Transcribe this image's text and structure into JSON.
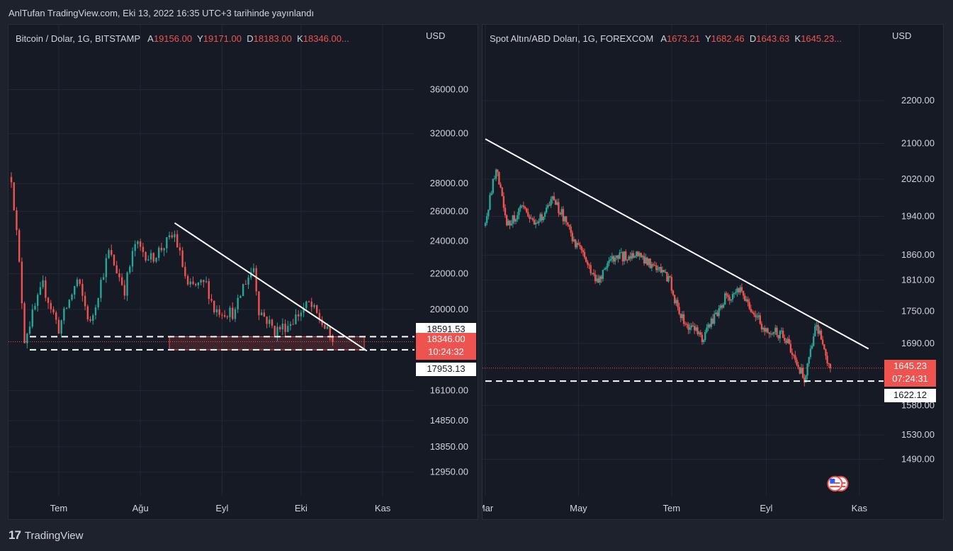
{
  "header": {
    "title": "AnlTufan TradingView.com, Eki 13, 2022 16:35 UTC+3 tarihinde yayınlandı"
  },
  "footer": {
    "brand": "TradingView",
    "logo": "17"
  },
  "colors": {
    "bg": "#1e222d",
    "panel": "#161a25",
    "up": "#26a69a",
    "down": "#ef5350",
    "text": "#d1d4dc",
    "grid": "#232734"
  },
  "charts": [
    {
      "legend": {
        "symbol": "Bitcoin / Dolar, 1G, BITSTAMP",
        "open_k": "A",
        "open": "19156.00",
        "high_k": "Y",
        "high": "19171.00",
        "low_k": "D",
        "low": "18183.00",
        "close_k": "K",
        "close": "18346.00..."
      },
      "currency": "USD",
      "price_ticks": [
        "36000.00",
        "32000.00",
        "28000.00",
        "26000.00",
        "24000.00",
        "22000.00",
        "20000.00",
        "16100.00",
        "14850.00",
        "13850.00",
        "12950.00"
      ],
      "time_ticks": [
        "Tem",
        "Ağu",
        "Eyl",
        "Eki",
        "Kas"
      ],
      "price_tags": [
        {
          "label": "18591.53",
          "style": "white"
        },
        {
          "label": "18346.00",
          "sub": "10:24:32",
          "style": "red"
        },
        {
          "label": "17953.13",
          "style": "white"
        }
      ]
    },
    {
      "legend": {
        "symbol": "Spot Altın/ABD Doları, 1G, FOREXCOM",
        "open_k": "A",
        "open": "1673.21",
        "high_k": "Y",
        "high": "1682.46",
        "low_k": "D",
        "low": "1643.63",
        "close_k": "K",
        "close": "1645.23..."
      },
      "currency": "USD",
      "price_ticks": [
        "2200.00",
        "2100.00",
        "2020.00",
        "1940.00",
        "1860.00",
        "1810.00",
        "1750.00",
        "1690.00",
        "1580.00",
        "1530.00",
        "1490.00"
      ],
      "time_ticks": [
        "Mar",
        "May",
        "Tem",
        "Eyl",
        "Kas"
      ],
      "price_tags": [
        {
          "label": "1645.23",
          "sub": "07:24:31",
          "style": "red"
        },
        {
          "label": "1622.12",
          "style": "white"
        }
      ]
    }
  ],
  "chart_data": [
    {
      "type": "candlestick",
      "title": "Bitcoin / Dolar, 1G, BITSTAMP",
      "ylim": [
        12500,
        37500
      ],
      "y_scale": "log",
      "x_range": [
        "2022-06-13",
        "2022-11-12"
      ],
      "close_path": [
        [
          "2022-06-13",
          28500
        ],
        [
          "2022-06-18",
          18500
        ],
        [
          "2022-06-25",
          21300
        ],
        [
          "2022-07-01",
          19000
        ],
        [
          "2022-07-08",
          21600
        ],
        [
          "2022-07-13",
          19200
        ],
        [
          "2022-07-20",
          23300
        ],
        [
          "2022-07-26",
          21100
        ],
        [
          "2022-07-30",
          23800
        ],
        [
          "2022-08-05",
          22900
        ],
        [
          "2022-08-14",
          24400
        ],
        [
          "2022-08-19",
          21200
        ],
        [
          "2022-08-26",
          21400
        ],
        [
          "2022-08-29",
          20000
        ],
        [
          "2022-09-06",
          19800
        ],
        [
          "2022-09-09",
          21300
        ],
        [
          "2022-09-13",
          22400
        ],
        [
          "2022-09-15",
          20000
        ],
        [
          "2022-09-21",
          18900
        ],
        [
          "2022-09-26",
          19200
        ],
        [
          "2022-10-04",
          20300
        ],
        [
          "2022-10-08",
          19500
        ],
        [
          "2022-10-13",
          18346
        ]
      ],
      "levels": [
        18591.53,
        17953.13
      ],
      "last_price": 18346.0,
      "trendline": [
        [
          "2022-08-14",
          25200
        ],
        [
          "2022-10-26",
          17900
        ]
      ],
      "highlight_zone": [
        17953.13,
        18591.53
      ]
    },
    {
      "type": "candlestick",
      "title": "Spot Altın/ABD Doları, 1G, FOREXCOM",
      "ylim": [
        1460,
        2260
      ],
      "y_scale": "log",
      "x_range": [
        "2022-03-01",
        "2022-11-15"
      ],
      "close_path": [
        [
          "2022-03-01",
          1920
        ],
        [
          "2022-03-08",
          2050
        ],
        [
          "2022-03-15",
          1920
        ],
        [
          "2022-03-24",
          1955
        ],
        [
          "2022-04-04",
          1925
        ],
        [
          "2022-04-14",
          1975
        ],
        [
          "2022-04-22",
          1935
        ],
        [
          "2022-04-28",
          1890
        ],
        [
          "2022-05-13",
          1810
        ],
        [
          "2022-05-24",
          1855
        ],
        [
          "2022-06-10",
          1860
        ],
        [
          "2022-06-30",
          1810
        ],
        [
          "2022-07-06",
          1740
        ],
        [
          "2022-07-21",
          1700
        ],
        [
          "2022-08-05",
          1775
        ],
        [
          "2022-08-15",
          1790
        ],
        [
          "2022-08-30",
          1720
        ],
        [
          "2022-09-14",
          1700
        ],
        [
          "2022-09-26",
          1625
        ],
        [
          "2022-10-04",
          1725
        ],
        [
          "2022-10-13",
          1645
        ]
      ],
      "levels": [
        1622.12
      ],
      "last_price": 1645.23,
      "trendline": [
        [
          "2022-03-01",
          2110
        ],
        [
          "2022-11-07",
          1680
        ]
      ]
    }
  ]
}
